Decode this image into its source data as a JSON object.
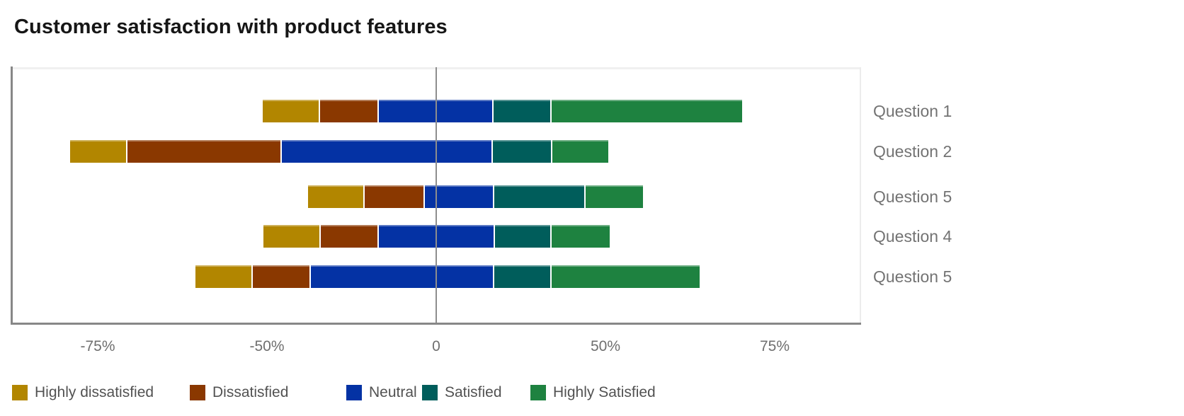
{
  "chart_data": {
    "type": "bar",
    "subtype": "diverging-stacked-horizontal",
    "title": "Customer satisfaction with product features",
    "categories": [
      "Question 1",
      "Question 2",
      "Question 5",
      "Question 4",
      "Question 5"
    ],
    "category_label_position": "right",
    "legend_position": "bottom",
    "series": [
      {
        "name": "Highly dissatisfied",
        "color": "#b28600",
        "values": [
          16.1,
          8.5,
          16.6,
          16.3,
          8.5
        ]
      },
      {
        "name": "Dissatisfied",
        "color": "#8a3800",
        "values": [
          17.4,
          24.9,
          17.8,
          17.1,
          14.9
        ]
      },
      {
        "name": "Neutral",
        "color": "#0432a4",
        "values": [
          34.0,
          62.4,
          20.6,
          34.3,
          54.2
        ]
      },
      {
        "name": "Satisfied",
        "color": "#005d5b",
        "values": [
          17.1,
          17.5,
          26.9,
          16.8,
          17.0
        ]
      },
      {
        "name": "Highly Satisfied",
        "color": "#1e8240",
        "values": [
          36.4,
          16.4,
          11.8,
          16.8,
          30.1
        ]
      }
    ],
    "bar_starts": [
      -50.7,
      -79.2,
      -38.0,
      -50.6,
      -60.7
    ],
    "bar_ends": [
      70.3,
      50.5,
      55.7,
      50.7,
      64.0
    ],
    "x_axis": {
      "tick_labels": [
        "-75%",
        "-50%",
        "0",
        "50%",
        "75%"
      ],
      "tick_values": [
        -75,
        -50,
        0,
        50,
        75
      ],
      "note": "tick marks are rendered at equal pixel spacing despite unequal value intervals"
    },
    "zero_line_color": "#8d8d8d",
    "grid": "off"
  }
}
